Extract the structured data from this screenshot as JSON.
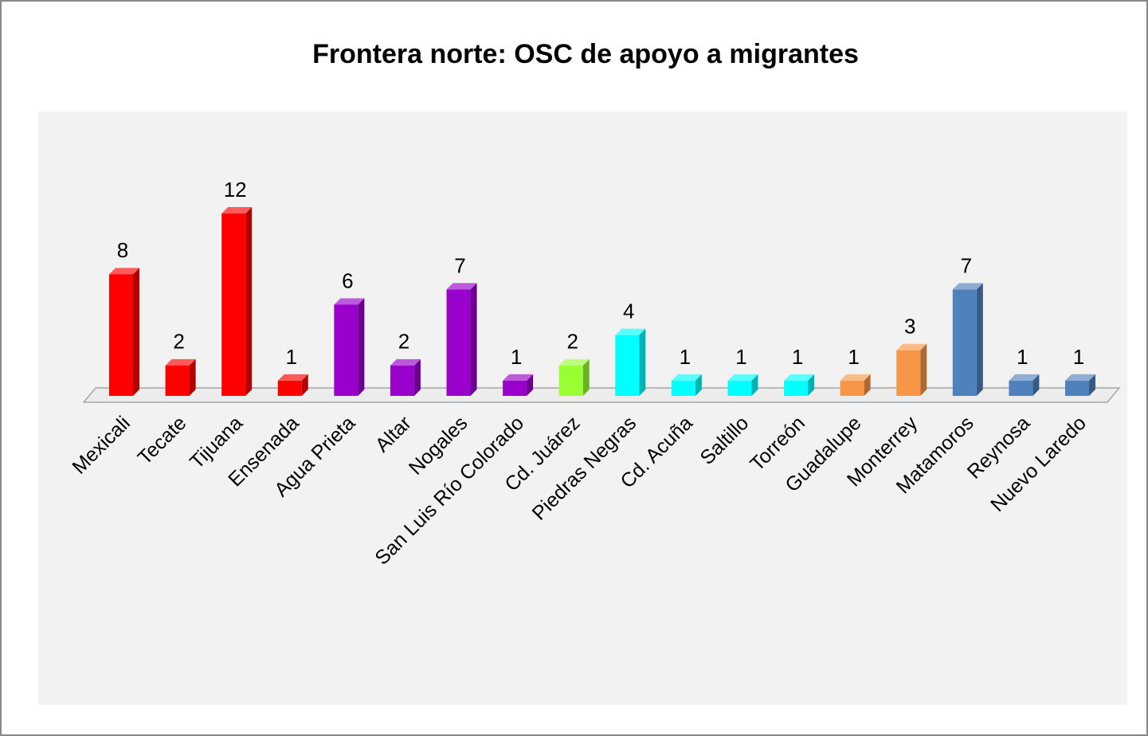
{
  "chart_data": {
    "type": "bar3d",
    "title": "Frontera norte: OSC de apoyo a migrantes",
    "categories": [
      "Mexicali",
      "Tecate",
      "Tijuana",
      "Ensenada",
      "Agua Prieta",
      "Altar",
      "Nogales",
      "San Luis Río Colorado",
      "Cd. Juárez",
      "Piedras Negras",
      "Cd. Acuña",
      "Saltillo",
      "Torreón",
      "Guadalupe",
      "Monterrey",
      "Matamoros",
      "Reynosa",
      "Nuevo Laredo"
    ],
    "values": [
      8,
      2,
      12,
      1,
      6,
      2,
      7,
      1,
      2,
      4,
      1,
      1,
      1,
      1,
      3,
      7,
      1,
      1
    ],
    "colors": [
      "#ff0000",
      "#ff0000",
      "#ff0000",
      "#ff0000",
      "#9900cc",
      "#9900cc",
      "#9900cc",
      "#9900cc",
      "#99ff33",
      "#00ffff",
      "#00ffff",
      "#00ffff",
      "#00ffff",
      "#f79646",
      "#f79646",
      "#4f81bd",
      "#4f81bd",
      "#4f81bd"
    ],
    "ylim": [
      0,
      12
    ]
  }
}
